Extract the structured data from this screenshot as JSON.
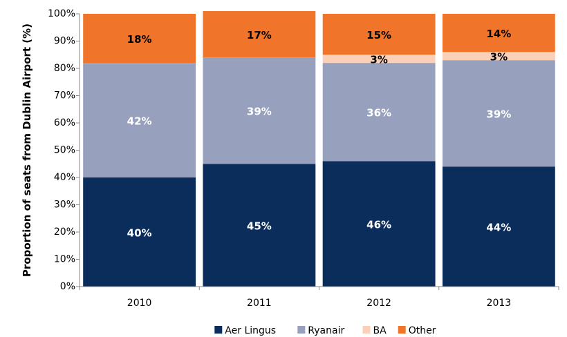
{
  "chart_data": {
    "type": "stacked_bar",
    "y_label": "Proportion of seats from Dublin Airport (%)",
    "categories": [
      "2010",
      "2011",
      "2012",
      "2013"
    ],
    "series": [
      {
        "name": "Aer Lingus",
        "color": "#0b2d5b",
        "values": [
          40,
          45,
          46,
          44
        ],
        "value_labels": [
          "40%",
          "45%",
          "46%",
          "44%"
        ],
        "label_color": "#ffffff"
      },
      {
        "name": "Ryanair",
        "color": "#97a1bd",
        "values": [
          42,
          39,
          36,
          39
        ],
        "value_labels": [
          "42%",
          "39%",
          "36%",
          "39%"
        ],
        "label_color": "#ffffff"
      },
      {
        "name": "BA",
        "color": "#fbd0b8",
        "values": [
          null,
          null,
          3,
          3
        ],
        "value_labels": [
          null,
          null,
          "3%",
          "3%"
        ],
        "label_color": "#000000"
      },
      {
        "name": "Other",
        "color": "#f0752a",
        "values": [
          18,
          17,
          15,
          14
        ],
        "value_labels": [
          "18%",
          "17%",
          "15%",
          "14%"
        ],
        "label_color": "#000000"
      }
    ],
    "ylim": [
      0,
      100
    ],
    "yticks": [
      {
        "value": 0,
        "label": "0%"
      },
      {
        "value": 10,
        "label": "10%"
      },
      {
        "value": 20,
        "label": "20%"
      },
      {
        "value": 30,
        "label": "30%"
      },
      {
        "value": 40,
        "label": "40%"
      },
      {
        "value": 50,
        "label": "50%"
      },
      {
        "value": 60,
        "label": "60%"
      },
      {
        "value": 70,
        "label": "70%"
      },
      {
        "value": 80,
        "label": "80%"
      },
      {
        "value": 90,
        "label": "90%"
      },
      {
        "value": 100,
        "label": "100%"
      }
    ],
    "legend": "bottom"
  }
}
